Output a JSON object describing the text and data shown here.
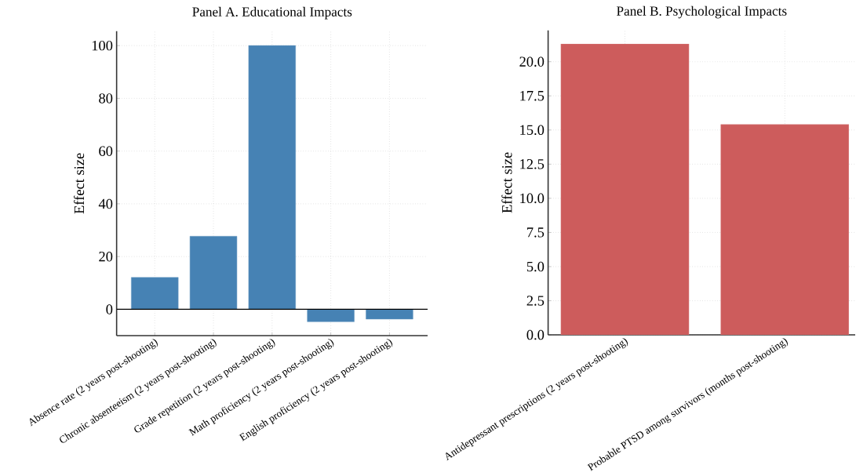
{
  "chart_data": [
    {
      "type": "bar",
      "title": "Panel A. Educational Impacts",
      "ylabel": "Effect size",
      "categories": [
        "Absence rate (2 years post-shooting)",
        "Chronic absenteeism (2 years post-shooting)",
        "Grade repetition (2 years post-shooting)",
        "Math proficiency (2 years post-shooting)",
        "English proficiency (2 years post-shooting)"
      ],
      "values": [
        12.1,
        27.7,
        100,
        -4.7,
        -3.7
      ],
      "color": "#4682b4",
      "ylim": [
        -10,
        105.5
      ],
      "yticks": [
        0,
        20,
        40,
        60,
        80,
        100
      ],
      "grid": true,
      "ref_lines": [
        {
          "axis": "y",
          "value": 0,
          "color": "#000000"
        }
      ]
    },
    {
      "type": "bar",
      "title": "Panel B. Psychological Impacts",
      "ylabel": "Effect size",
      "categories": [
        "Antidepressant prescriptions (2 years post-shooting)",
        "Probable PTSD among survivors (months post-shooting)"
      ],
      "values": [
        21.3,
        15.4
      ],
      "color": "#cd5c5c",
      "ylim": [
        0,
        22.3
      ],
      "yticks": [
        {
          "value": 0,
          "label": "0.0"
        },
        {
          "value": 2.5,
          "label": "2.5"
        },
        {
          "value": 5,
          "label": "5.0"
        },
        {
          "value": 7.5,
          "label": "7.5"
        },
        {
          "value": 10,
          "label": "10.0"
        },
        {
          "value": 12.5,
          "label": "12.5"
        },
        {
          "value": 15,
          "label": "15.0"
        },
        {
          "value": 17.5,
          "label": "17.5"
        },
        {
          "value": 20,
          "label": "20.0"
        }
      ],
      "grid": true
    }
  ]
}
